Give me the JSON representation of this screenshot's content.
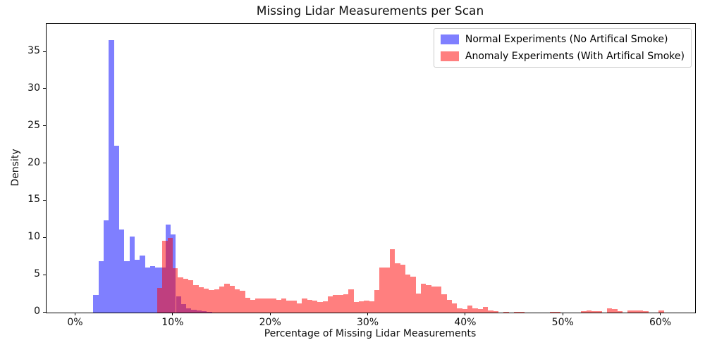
{
  "chart_data": {
    "type": "bar",
    "subtype": "overlapping-density-histograms",
    "title": "Missing Lidar Measurements per Scan",
    "xlabel": "Percentage of Missing Lidar Measurements",
    "ylabel": "Density",
    "xlim": [
      -3,
      63.5
    ],
    "ylim": [
      0,
      38.8
    ],
    "grid": false,
    "x_ticks": [
      {
        "value": 0,
        "label": "0%"
      },
      {
        "value": 10,
        "label": "10%"
      },
      {
        "value": 20,
        "label": "20%"
      },
      {
        "value": 30,
        "label": "30%"
      },
      {
        "value": 40,
        "label": "40%"
      },
      {
        "value": 50,
        "label": "50%"
      },
      {
        "value": 60,
        "label": "60%"
      }
    ],
    "y_ticks": [
      {
        "value": 0,
        "label": "0"
      },
      {
        "value": 5,
        "label": "5"
      },
      {
        "value": 10,
        "label": "10"
      },
      {
        "value": 15,
        "label": "15"
      },
      {
        "value": 20,
        "label": "20"
      },
      {
        "value": 25,
        "label": "25"
      },
      {
        "value": 30,
        "label": "30"
      },
      {
        "value": 35,
        "label": "35"
      }
    ],
    "legend": {
      "position": "upper right",
      "entries": [
        {
          "label": "Normal Experiments (No Artifical Smoke)",
          "color": "rgba(0,0,255,0.5)",
          "display_color": "#8080ff"
        },
        {
          "label": "Anomaly Experiments (With Artifical Smoke)",
          "color": "rgba(255,0,0,0.5)",
          "display_color": "#ff8080"
        }
      ]
    },
    "overlap_color": "#bf407d",
    "series": [
      {
        "name": "Normal Experiments (No Artifical Smoke)",
        "color": "rgba(0,0,255,0.5)",
        "bin_start_percent": 1.8,
        "bin_width_percent": 0.529,
        "densities": [
          2.4,
          6.9,
          12.4,
          36.6,
          22.4,
          11.2,
          6.9,
          10.2,
          7.1,
          7.7,
          6.1,
          6.2,
          6.1,
          6.1,
          11.8,
          10.5,
          2.2,
          1.1,
          0.6,
          0.35,
          0.25,
          0.15,
          0.1
        ]
      },
      {
        "name": "Anomaly Experiments (With Artifical Smoke)",
        "color": "rgba(255,0,0,0.5)",
        "bin_start_percent": 8.36,
        "bin_width_percent": 0.53,
        "densities": [
          3.3,
          9.7,
          10.0,
          6.0,
          4.7,
          4.5,
          4.4,
          3.7,
          3.4,
          3.2,
          3.0,
          3.1,
          3.5,
          3.9,
          3.6,
          3.1,
          2.9,
          2.0,
          1.7,
          1.9,
          1.9,
          1.9,
          1.9,
          1.7,
          1.9,
          1.6,
          1.6,
          1.25,
          1.9,
          1.7,
          1.65,
          1.4,
          1.5,
          2.2,
          2.4,
          2.35,
          2.5,
          3.1,
          1.4,
          1.5,
          1.65,
          1.55,
          3.05,
          6.1,
          6.1,
          8.5,
          6.6,
          6.4,
          5.1,
          4.8,
          2.6,
          3.9,
          3.7,
          3.5,
          3.5,
          2.5,
          1.7,
          1.2,
          0.6,
          0.5,
          0.95,
          0.55,
          0.5,
          0.8,
          0.3,
          0.15,
          0,
          0.1,
          0,
          0.1,
          0.1,
          0,
          0,
          0,
          0,
          0,
          0.12,
          0.1,
          0,
          0,
          0,
          0,
          0.15,
          0.25,
          0.2,
          0.15,
          0,
          0.55,
          0.5,
          0.2,
          0,
          0.25,
          0.3,
          0.3,
          0.15,
          0,
          0,
          0.3
        ]
      }
    ]
  }
}
